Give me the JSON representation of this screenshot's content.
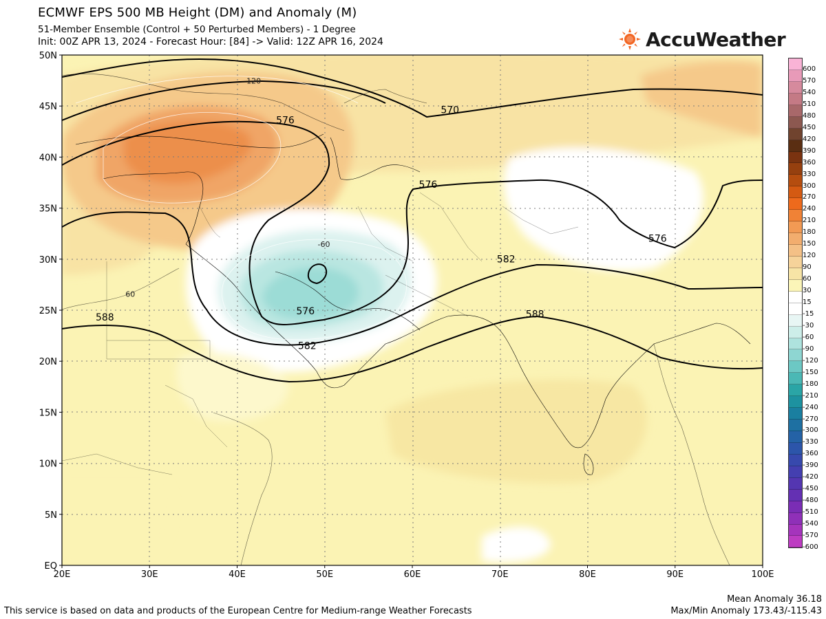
{
  "header": {
    "title": "ECMWF EPS 500 MB Height (DM) and Anomaly (M)",
    "subtitle_1": "51-Member Ensemble (Control + 50 Perturbed Members) - 1 Degree",
    "subtitle_2": "Init: 00Z APR 13, 2024 - Forecast Hour: [84] -> Valid: 12Z APR 16, 2024"
  },
  "logo": {
    "text": "AccuWeather",
    "icon": "sun-icon",
    "color": "#f26522"
  },
  "map": {
    "lon_range": [
      20,
      100
    ],
    "lat_range": [
      0,
      50
    ],
    "x_ticks": [
      "20E",
      "30E",
      "40E",
      "50E",
      "60E",
      "70E",
      "80E",
      "90E",
      "100E"
    ],
    "y_ticks": [
      "50N",
      "45N",
      "40N",
      "35N",
      "30N",
      "25N",
      "20N",
      "15N",
      "10N",
      "5N",
      "EQ"
    ],
    "height_contour_labels": [
      {
        "text": "576",
        "lon": 45.5,
        "lat": 43.3
      },
      {
        "text": "570",
        "lon": 64.3,
        "lat": 44.3
      },
      {
        "text": "576",
        "lon": 61.8,
        "lat": 37.0
      },
      {
        "text": "576",
        "lon": 88.0,
        "lat": 31.7
      },
      {
        "text": "576",
        "lon": 47.8,
        "lat": 24.6
      },
      {
        "text": "582",
        "lon": 70.7,
        "lat": 29.7
      },
      {
        "text": "582",
        "lon": 48.0,
        "lat": 21.2
      },
      {
        "text": "588",
        "lon": 24.9,
        "lat": 24.0
      },
      {
        "text": "588",
        "lon": 74.0,
        "lat": 24.3
      }
    ],
    "anomaly_labels": [
      {
        "text": "120",
        "lon": 41.9,
        "lat": 47.2
      },
      {
        "text": "-60",
        "lon": 49.9,
        "lat": 31.2
      },
      {
        "text": "60",
        "lon": 27.8,
        "lat": 26.3
      }
    ]
  },
  "colorbar": {
    "levels": [
      "600",
      "570",
      "540",
      "510",
      "480",
      "450",
      "420",
      "390",
      "360",
      "330",
      "300",
      "270",
      "240",
      "210",
      "180",
      "150",
      "120",
      "90",
      "60",
      "30",
      "15",
      "-15",
      "-30",
      "-60",
      "-90",
      "-120",
      "-150",
      "-180",
      "-210",
      "-240",
      "-270",
      "-300",
      "-330",
      "-360",
      "-390",
      "-420",
      "-450",
      "-480",
      "-510",
      "-540",
      "-570",
      "-600"
    ],
    "colors": [
      "#f9b3d6",
      "#e89ab8",
      "#d68a9d",
      "#c47a85",
      "#a8686a",
      "#8c5850",
      "#70432e",
      "#5a2e12",
      "#7a3310",
      "#96400f",
      "#b54d0f",
      "#d45a12",
      "#ee6a1c",
      "#f08236",
      "#f29a54",
      "#f2ad6e",
      "#f4c086",
      "#f6d39a",
      "#f7e4a6",
      "#fbf5b8",
      "#ffffff",
      "#ffffff",
      "#e8f6f4",
      "#cdeee9",
      "#aee3de",
      "#8ed6d2",
      "#6cc8c4",
      "#4bb8b5",
      "#2aa5a6",
      "#1d92a0",
      "#1a7fa0",
      "#1e70a2",
      "#2462a6",
      "#2c55aa",
      "#3749ad",
      "#443fb0",
      "#5436b1",
      "#6430b3",
      "#7a2db5",
      "#8f30b8",
      "#a534bc",
      "#bd3cc2"
    ]
  },
  "footer": {
    "disclaimer": "This service is based on data and products of the European Centre for Medium-range Weather Forecasts",
    "mean_anomaly": "Mean Anomaly 36.18",
    "maxmin_anomaly": "Max/Min Anomaly 173.43/-115.43"
  }
}
